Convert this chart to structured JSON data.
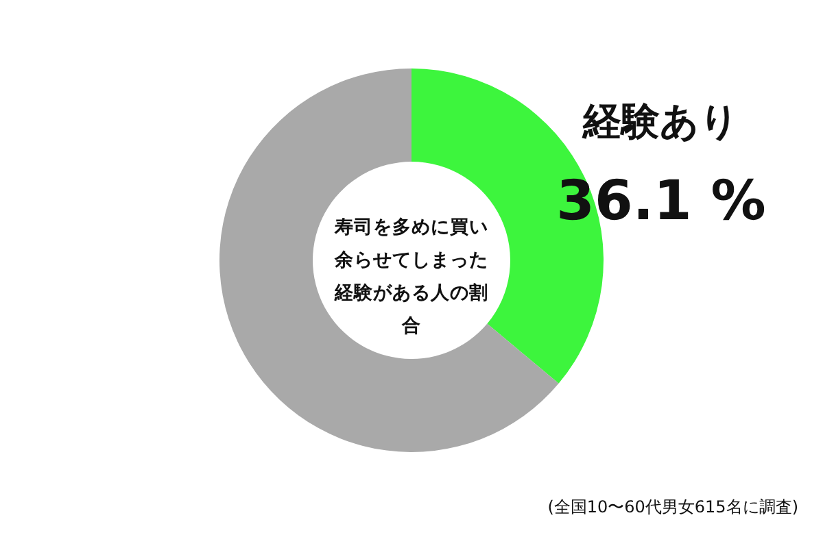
{
  "chart_data": {
    "type": "donut",
    "title": "寿司を多めに買い余らせてしまった経験がある人の割合",
    "categories": [
      "経験あり",
      null
    ],
    "values": [
      36.1,
      63.9
    ],
    "colors": [
      "#3df53d",
      "#a9a9a9"
    ],
    "value_labels": [
      "36.1 %",
      null
    ],
    "annotations": [
      "(全国10〜60代男女615名に調査)"
    ]
  }
}
